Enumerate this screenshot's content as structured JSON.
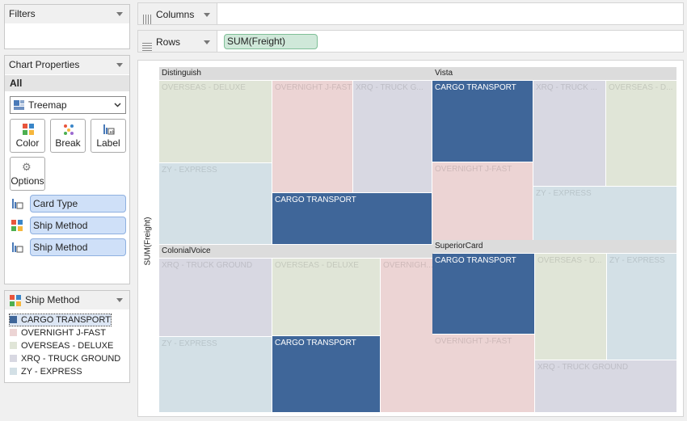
{
  "filters": {
    "title": "Filters"
  },
  "chart_properties": {
    "title": "Chart Properties",
    "tab": "All",
    "chart_type": "Treemap",
    "buttons": {
      "color": "Color",
      "break": "Break",
      "label": "Label",
      "options": "Options"
    },
    "fields": [
      {
        "role": "label-icon",
        "name": "Card Type"
      },
      {
        "role": "color-icon",
        "name": "Ship Method"
      },
      {
        "role": "label-icon",
        "name": "Ship Method"
      }
    ]
  },
  "legend": {
    "title": "Ship Method",
    "items": [
      {
        "name": "CARGO TRANSPORT",
        "color": "#3f6699"
      },
      {
        "name": "OVERNIGHT J-FAST",
        "color": "#ecd4d4"
      },
      {
        "name": "OVERSEAS - DELUXE",
        "color": "#e0e5d7"
      },
      {
        "name": "XRQ - TRUCK GROUND",
        "color": "#d8d8e2"
      },
      {
        "name": "ZY - EXPRESS",
        "color": "#d3e0e6"
      }
    ]
  },
  "shelves": {
    "columns_label": "Columns",
    "rows_label": "Rows",
    "rows_pill": "SUM(Freight)"
  },
  "chart_data": {
    "type": "treemap",
    "axis_label": "SUM(Freight)",
    "groups": [
      {
        "name": "Distinguish",
        "tiles": [
          "OVERSEAS - DELUXE",
          "OVERNIGHT J-FAST",
          "XRQ - TRUCK G...",
          "ZY - EXPRESS",
          "CARGO TRANSPORT"
        ]
      },
      {
        "name": "Vista",
        "tiles": [
          "CARGO TRANSPORT",
          "XRQ - TRUCK ...",
          "OVERSEAS - D...",
          "OVERNIGHT J-FAST",
          "ZY - EXPRESS"
        ]
      },
      {
        "name": "ColonialVoice",
        "tiles": [
          "XRQ - TRUCK GROUND",
          "OVERSEAS - DELUXE",
          "OVERNIGH...",
          "ZY - EXPRESS",
          "CARGO TRANSPORT"
        ]
      },
      {
        "name": "SuperiorCard",
        "tiles": [
          "CARGO TRANSPORT",
          "OVERSEAS - D...",
          "ZY - EXPRESS",
          "OVERNIGHT J-FAST",
          "XRQ - TRUCK GROUND"
        ]
      }
    ]
  }
}
